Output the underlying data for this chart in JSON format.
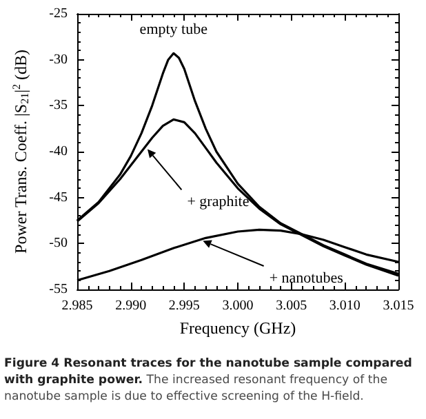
{
  "chart_data": {
    "type": "line",
    "title": "Figure 4 Resonant traces for the nanotube sample compared with graphite power.",
    "subtitle": "The increased resonant frequency of the nanotube sample is due to effective screening of the H-field.",
    "xlabel": "Frequency (GHz)",
    "ylabel": "Power Trans. Coeff. |S$_{21}$|$^{2}$ (dB)",
    "xlim": [
      2.985,
      3.015
    ],
    "xticks": [
      2.985,
      {
        "value": 2.99,
        "label": "2.990"
      },
      2.995,
      {
        "value": 3.0,
        "label": "3.000"
      },
      3.005,
      {
        "value": 3.01,
        "label": "3.010"
      },
      3.015
    ],
    "ylim": [
      -55,
      -25
    ],
    "yticks": [
      -55,
      -50,
      -45,
      -40,
      -35,
      -30,
      -25
    ],
    "grid": false,
    "marker": "none",
    "line_style": "solid",
    "annotations": [
      {
        "text": "empty tube",
        "x": 2.994,
        "y": -29.3
      },
      {
        "text": "+ graphite",
        "x": 2.9914,
        "y": -39.5
      },
      {
        "text": "+ nanotubes",
        "x": 2.9965,
        "y": -49.6
      }
    ],
    "series": [
      {
        "color": "#000000",
        "x": [
          2.985,
          2.987,
          2.989,
          2.99,
          2.991,
          2.992,
          2.993,
          2.9935,
          2.994,
          2.9945,
          2.995,
          2.996,
          2.997,
          2.998,
          3.0,
          3.002,
          3.004,
          3.006,
          3.008,
          3.01,
          3.012,
          3.015
        ],
        "values": [
          -47.5,
          -45.5,
          -42.5,
          -40.5,
          -38,
          -35,
          -31.5,
          -30,
          -29.3,
          -29.8,
          -31,
          -34.5,
          -37.5,
          -40,
          -43.5,
          -46,
          -47.8,
          -49,
          -50.2,
          -51.2,
          -52.2,
          -53.3
        ]
      },
      {
        "color": "#000000",
        "x": [
          2.985,
          2.987,
          2.989,
          2.99,
          2.991,
          2.992,
          2.993,
          2.994,
          2.995,
          2.996,
          2.997,
          2.998,
          3.0,
          3.002,
          3.004,
          3.006,
          3.008,
          3.01,
          3.012,
          3.015
        ],
        "values": [
          -47.6,
          -45.6,
          -43,
          -41.5,
          -40,
          -38.5,
          -37.2,
          -36.5,
          -36.8,
          -38,
          -39.6,
          -41.2,
          -44,
          -46.2,
          -47.9,
          -49.1,
          -50.3,
          -51.3,
          -52.3,
          -53.5
        ]
      },
      {
        "color": "#000000",
        "x": [
          2.985,
          2.988,
          2.991,
          2.994,
          2.997,
          3.0,
          3.002,
          3.004,
          3.006,
          3.008,
          3.01,
          3.012,
          3.015
        ],
        "values": [
          -54,
          -53,
          -51.8,
          -50.5,
          -49.4,
          -48.7,
          -48.5,
          -48.6,
          -49,
          -49.6,
          -50.4,
          -51.2,
          -52
        ]
      }
    ]
  }
}
